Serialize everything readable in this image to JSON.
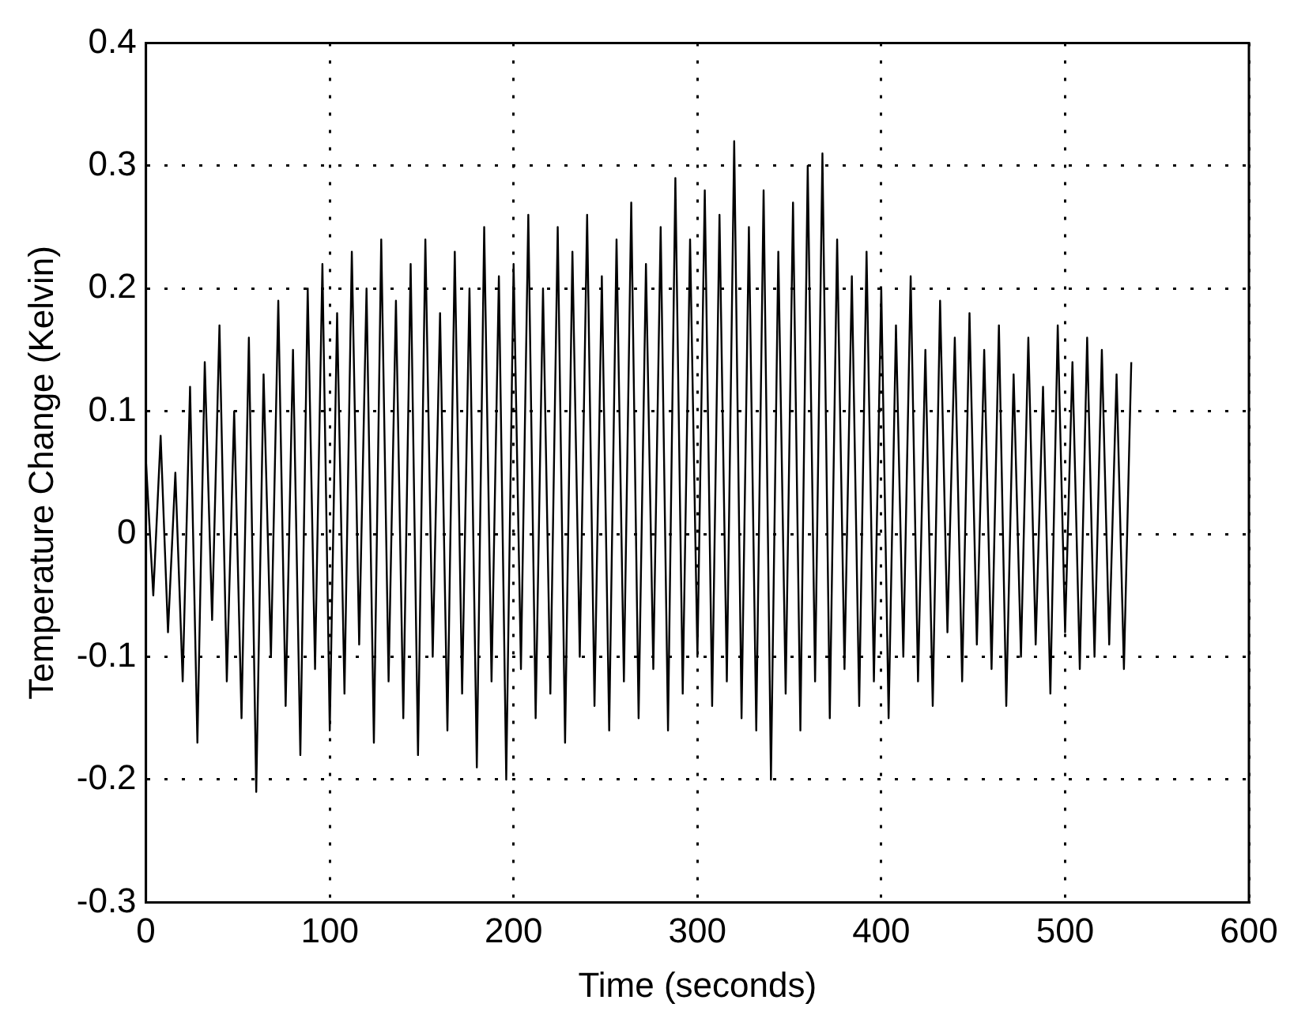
{
  "chart_data": {
    "type": "line",
    "xlabel": "Time (seconds)",
    "ylabel": "Temperature Change (Kelvin)",
    "xlim": [
      0,
      600
    ],
    "xticks": [
      0,
      100,
      200,
      300,
      400,
      500,
      600
    ],
    "ylim": [
      -0.3,
      0.4
    ],
    "yticks": [
      -0.3,
      -0.2,
      -0.1,
      0,
      0.1,
      0.2,
      0.3,
      0.4
    ],
    "grid": true,
    "line_style": "solid",
    "marker": "none",
    "series": [
      {
        "color": "#000000",
        "x": [
          0,
          4,
          8,
          12,
          16,
          20,
          24,
          28,
          32,
          36,
          40,
          44,
          48,
          52,
          56,
          60,
          64,
          68,
          72,
          76,
          80,
          84,
          88,
          92,
          96,
          100,
          104,
          108,
          112,
          116,
          120,
          124,
          128,
          132,
          136,
          140,
          144,
          148,
          152,
          156,
          160,
          164,
          168,
          172,
          176,
          180,
          184,
          188,
          192,
          196,
          200,
          204,
          208,
          212,
          216,
          220,
          224,
          228,
          232,
          236,
          240,
          244,
          248,
          252,
          256,
          260,
          264,
          268,
          272,
          276,
          280,
          284,
          288,
          292,
          296,
          300,
          304,
          308,
          312,
          316,
          320,
          324,
          328,
          332,
          336,
          340,
          344,
          348,
          352,
          356,
          360,
          364,
          368,
          372,
          376,
          380,
          384,
          388,
          392,
          396,
          400,
          404,
          408,
          412,
          416,
          420,
          424,
          428,
          432,
          436,
          440,
          444,
          448,
          452,
          456,
          460,
          464,
          468,
          472,
          476,
          480,
          484,
          488,
          492,
          496,
          500,
          504,
          508,
          512,
          516,
          520,
          524,
          528,
          532,
          536
        ],
        "values": [
          0.06,
          -0.05,
          0.08,
          -0.08,
          0.05,
          -0.12,
          0.12,
          -0.17,
          0.14,
          -0.07,
          0.17,
          -0.12,
          0.1,
          -0.15,
          0.16,
          -0.21,
          0.13,
          -0.1,
          0.19,
          -0.14,
          0.15,
          -0.18,
          0.2,
          -0.11,
          0.22,
          -0.16,
          0.18,
          -0.13,
          0.23,
          -0.09,
          0.2,
          -0.17,
          0.24,
          -0.12,
          0.19,
          -0.15,
          0.22,
          -0.18,
          0.24,
          -0.1,
          0.18,
          -0.16,
          0.23,
          -0.13,
          0.2,
          -0.19,
          0.25,
          -0.12,
          0.21,
          -0.2,
          0.22,
          -0.11,
          0.26,
          -0.15,
          0.2,
          -0.13,
          0.25,
          -0.17,
          0.23,
          -0.1,
          0.26,
          -0.14,
          0.21,
          -0.16,
          0.24,
          -0.12,
          0.27,
          -0.15,
          0.22,
          -0.11,
          0.25,
          -0.16,
          0.29,
          -0.13,
          0.24,
          -0.1,
          0.28,
          -0.14,
          0.26,
          -0.12,
          0.32,
          -0.15,
          0.25,
          -0.16,
          0.28,
          -0.2,
          0.23,
          -0.13,
          0.27,
          -0.16,
          0.3,
          -0.12,
          0.31,
          -0.15,
          0.24,
          -0.11,
          0.21,
          -0.14,
          0.23,
          -0.12,
          0.2,
          -0.15,
          0.17,
          -0.1,
          0.21,
          -0.12,
          0.15,
          -0.14,
          0.19,
          -0.08,
          0.16,
          -0.12,
          0.18,
          -0.09,
          0.15,
          -0.11,
          0.17,
          -0.14,
          0.13,
          -0.1,
          0.16,
          -0.09,
          0.12,
          -0.13,
          0.17,
          -0.08,
          0.14,
          -0.11,
          0.16,
          -0.1,
          0.15,
          -0.09,
          0.13,
          -0.11,
          0.14
        ]
      }
    ]
  }
}
